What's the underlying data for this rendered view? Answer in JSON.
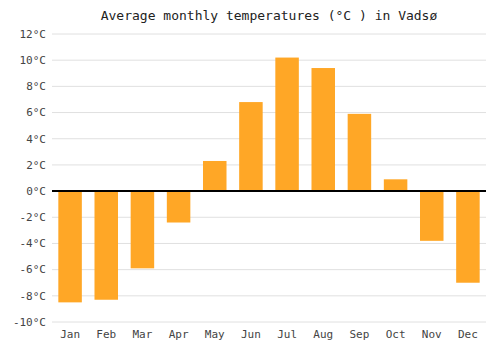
{
  "chart_data": {
    "type": "bar",
    "title": "Average monthly temperatures (°C ) in Vadsø",
    "categories": [
      "Jan",
      "Feb",
      "Mar",
      "Apr",
      "May",
      "Jun",
      "Jul",
      "Aug",
      "Sep",
      "Oct",
      "Nov",
      "Dec"
    ],
    "values": [
      -8.5,
      -8.3,
      -5.9,
      -2.4,
      2.3,
      6.8,
      10.2,
      9.4,
      5.9,
      0.9,
      -3.8,
      -7.0
    ],
    "color": "#FFA726",
    "ylim": [
      -10,
      12
    ],
    "yticks": [
      {
        "value": -10,
        "label": "-10°C"
      },
      {
        "value": -8,
        "label": "-8°C"
      },
      {
        "value": -6,
        "label": "-6°C"
      },
      {
        "value": -4,
        "label": "-4°C"
      },
      {
        "value": -2,
        "label": "-2°C"
      },
      {
        "value": 0,
        "label": "0°C"
      },
      {
        "value": 2,
        "label": "2°C"
      },
      {
        "value": 4,
        "label": "4°C"
      },
      {
        "value": 6,
        "label": "6°C"
      },
      {
        "value": 8,
        "label": "8°C"
      },
      {
        "value": 10,
        "label": "10°C"
      },
      {
        "value": 12,
        "label": "12°C"
      }
    ],
    "grid": true
  }
}
